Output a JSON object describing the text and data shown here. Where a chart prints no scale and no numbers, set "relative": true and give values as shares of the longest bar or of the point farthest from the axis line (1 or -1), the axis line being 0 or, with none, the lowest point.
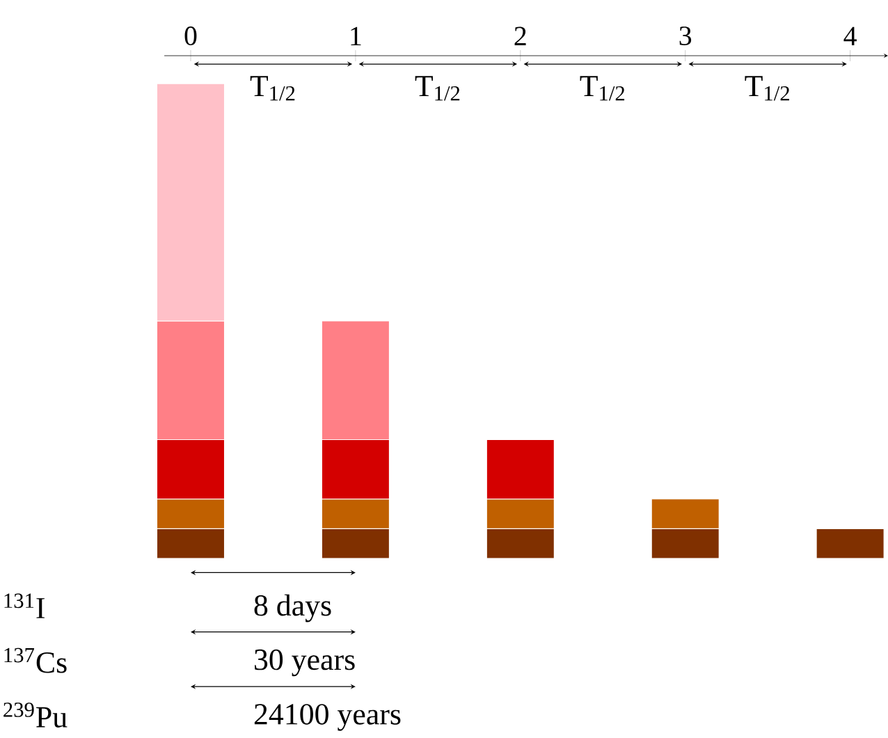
{
  "chart_data": {
    "type": "bar",
    "stacked": true,
    "relative": true,
    "x": [
      0,
      1,
      2,
      3,
      4
    ],
    "xlim": [
      -0.16,
      4.23
    ],
    "xticks": [
      0,
      1,
      2,
      3,
      4
    ],
    "series": [
      {
        "color": "#803000",
        "values": [
          0.0625,
          0.0625,
          0.0625,
          0.0625,
          0.0625
        ]
      },
      {
        "color": "#c06000",
        "values": [
          0.0625,
          0.0625,
          0.0625,
          0.0625,
          null
        ]
      },
      {
        "color": "#d40000",
        "values": [
          0.125,
          0.125,
          0.125,
          null,
          null
        ]
      },
      {
        "color": "#ff7f86",
        "values": [
          0.25,
          0.25,
          null,
          null,
          null
        ]
      },
      {
        "color": "#ffc0c8",
        "values": [
          0.5,
          null,
          null,
          null,
          null
        ]
      }
    ],
    "annotations": [
      "T$_{1/2}$",
      "T$_{1/2}$",
      "T$_{1/2}$",
      "T$_{1/2}$",
      "$^{131}$I",
      "$^{137}$Cs",
      "$^{239}$Pu",
      "8 days",
      "30 years",
      "24100 years"
    ]
  }
}
